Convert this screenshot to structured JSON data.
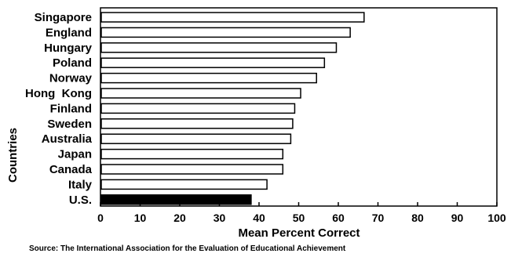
{
  "chart_data": {
    "type": "bar",
    "orientation": "horizontal",
    "categories": [
      "Singapore",
      "England",
      "Hungary",
      "Poland",
      "Norway",
      "Hong  Kong",
      "Finland",
      "Sweden",
      "Australia",
      "Japan",
      "Canada",
      "Italy",
      "U.S."
    ],
    "values": [
      66.5,
      63,
      59.5,
      56.5,
      54.5,
      50.5,
      49,
      48.5,
      48,
      46,
      46,
      42,
      38
    ],
    "colors": [
      "#ffffff",
      "#ffffff",
      "#ffffff",
      "#ffffff",
      "#ffffff",
      "#ffffff",
      "#ffffff",
      "#ffffff",
      "#ffffff",
      "#ffffff",
      "#ffffff",
      "#ffffff",
      "#000000"
    ],
    "xlabel": "Mean Percent Correct",
    "ylabel": "Countries",
    "xlim": [
      0,
      100
    ],
    "xticks": [
      "0",
      "10",
      "20",
      "30",
      "40",
      "50",
      "60",
      "70",
      "80",
      "90",
      "100"
    ],
    "grid": false
  },
  "source_note": "Source: The International Association for the Evaluation of Educational Achievement"
}
